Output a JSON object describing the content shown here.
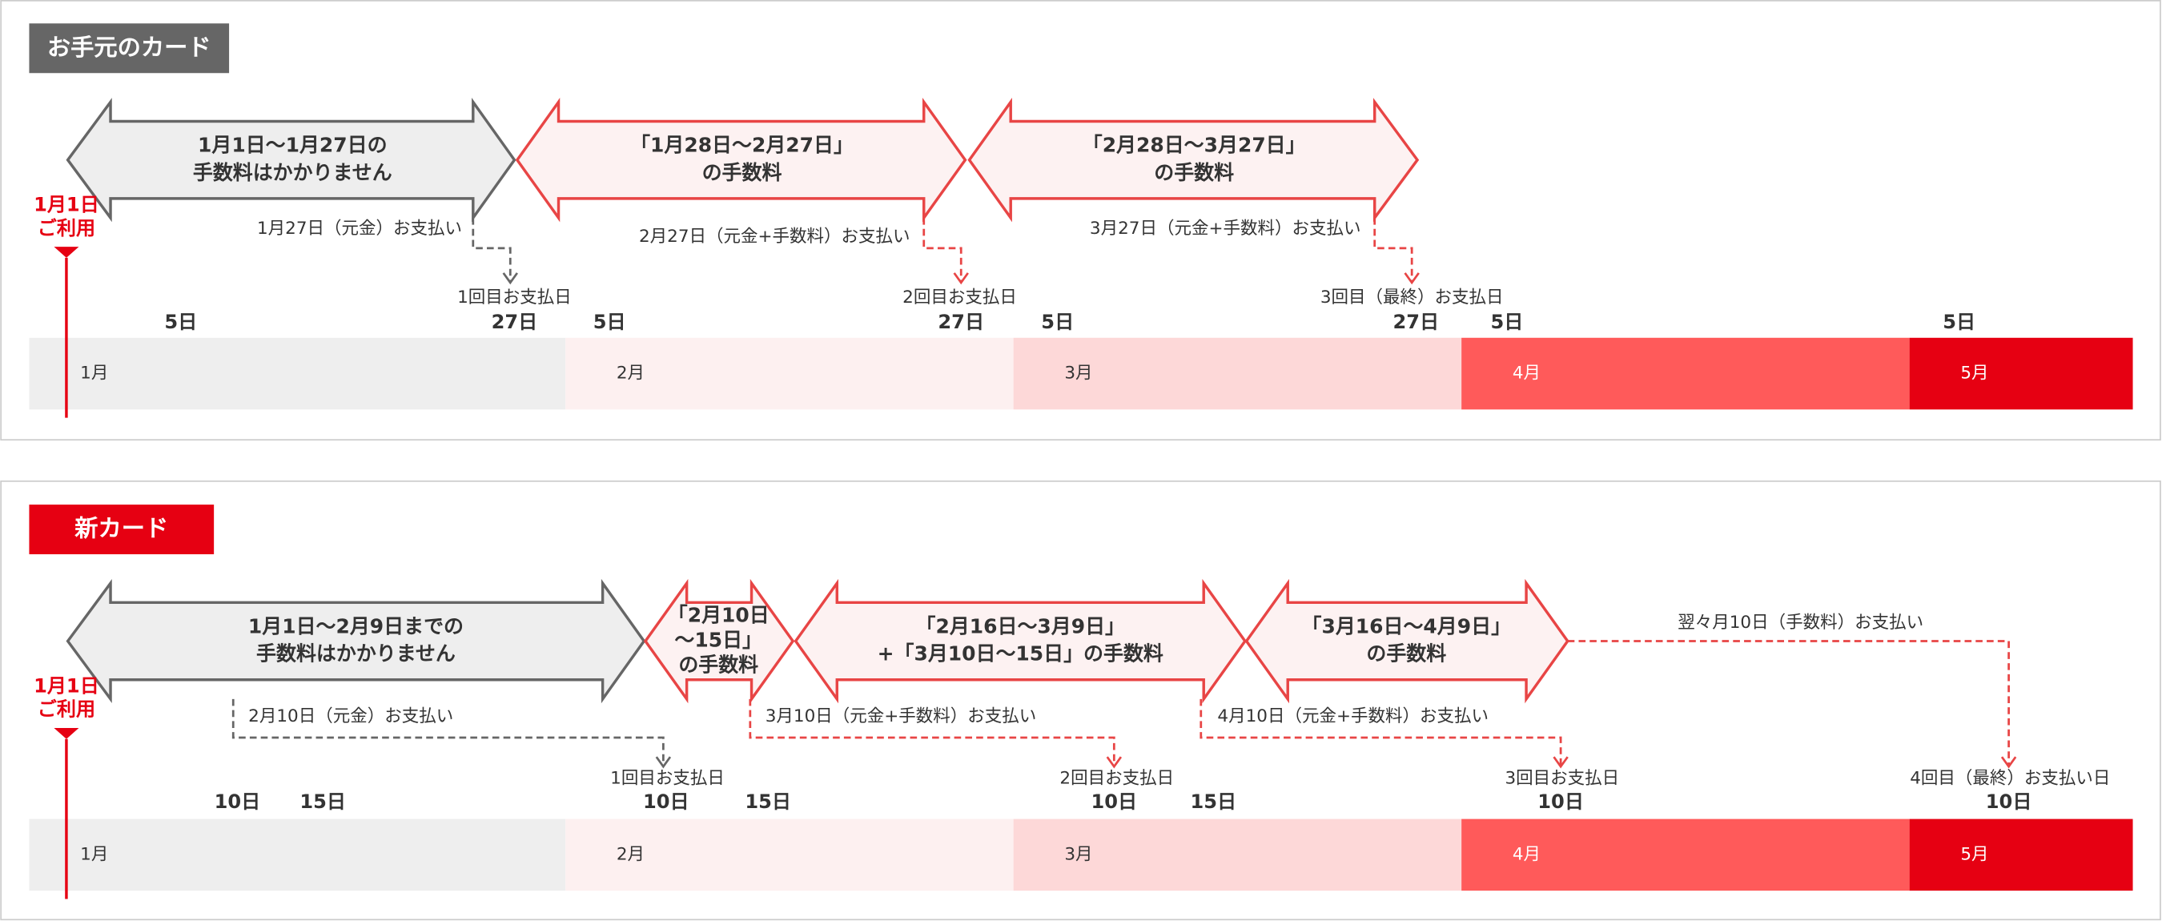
{
  "panels": [
    {
      "label": "お手元のカード",
      "first_use": [
        "1月1日",
        "ご利用"
      ],
      "arrows": [
        {
          "lines": [
            "1月1日～1月27日の",
            "手数料はかかりません"
          ]
        },
        {
          "lines": [
            "「1月28日～2月27日」",
            "の手数料"
          ]
        },
        {
          "lines": [
            "「2月28日～3月27日」",
            "の手数料"
          ]
        }
      ],
      "notes": [
        "1月27日（元金）お支払い",
        "2月27日（元金+手数料）お支払い",
        "3月27日（元金+手数料）お支払い"
      ],
      "payment_days": [
        "1回目お支払日",
        "2回目お支払日",
        "3回目（最終）お支払日"
      ],
      "days": [
        "5日",
        "27日",
        "5日",
        "27日",
        "5日",
        "27日",
        "5日",
        "5日"
      ],
      "months": [
        "1月",
        "2月",
        "3月",
        "4月",
        "5月"
      ]
    },
    {
      "label": "新カード",
      "first_use": [
        "1月1日",
        "ご利用"
      ],
      "arrows": [
        {
          "lines": [
            "1月1日～2月9日までの",
            "手数料はかかりません"
          ]
        },
        {
          "lines": [
            "「2月10日",
            "～15日」",
            "の手数料"
          ]
        },
        {
          "lines": [
            "「2月16日～3月9日」",
            "+「3月10日～15日」の手数料"
          ]
        },
        {
          "lines": [
            "「3月16日～4月9日」",
            "の手数料"
          ]
        }
      ],
      "notes": [
        "2月10日（元金）お支払い",
        "3月10日（元金+手数料）お支払い",
        "4月10日（元金+手数料）お支払い",
        "翌々月10日（手数料）お支払い"
      ],
      "payment_days": [
        "1回目お支払日",
        "2回目お支払日",
        "3回目お支払日",
        "4回目（最終）お支払い日"
      ],
      "days": [
        "10日",
        "15日",
        "10日",
        "15日",
        "10日",
        "15日",
        "10日",
        "10日"
      ],
      "months": [
        "1月",
        "2月",
        "3月",
        "4月",
        "5月"
      ]
    }
  ]
}
